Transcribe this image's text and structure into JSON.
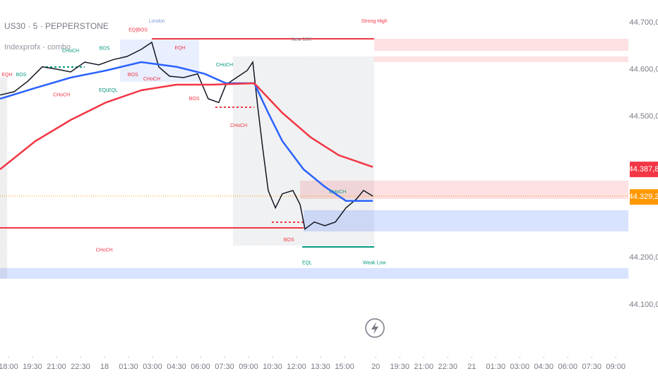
{
  "chart_data": {
    "type": "line",
    "title": "US30 · 5 · PEPPERSTONE",
    "subtitle": "Indexprofx - combo",
    "xlim": [
      -0.353,
      25.824
    ],
    "ylim": [
      44013,
      44748
    ],
    "xticks": [
      {
        "value": 0,
        "label": "18:00"
      },
      {
        "value": 1,
        "label": "19:30"
      },
      {
        "value": 2,
        "label": "21:00"
      },
      {
        "value": 3,
        "label": "22:30"
      },
      {
        "value": 4,
        "label": "18"
      },
      {
        "value": 5,
        "label": "01:30"
      },
      {
        "value": 6,
        "label": "03:00"
      },
      {
        "value": 7,
        "label": "04:30"
      },
      {
        "value": 8,
        "label": "06:00"
      },
      {
        "value": 9,
        "label": "07:30"
      },
      {
        "value": 10,
        "label": "09:00"
      },
      {
        "value": 11,
        "label": "10:30"
      },
      {
        "value": 12,
        "label": "12:00"
      },
      {
        "value": 13,
        "label": "13:30"
      },
      {
        "value": 14,
        "label": "15:00"
      },
      {
        "value": 15.3,
        "label": "20"
      },
      {
        "value": 16.3,
        "label": "19:30"
      },
      {
        "value": 17.3,
        "label": "21:00"
      },
      {
        "value": 18.3,
        "label": "22:30"
      },
      {
        "value": 19.3,
        "label": "21"
      },
      {
        "value": 20.3,
        "label": "01:30"
      },
      {
        "value": 21.3,
        "label": "03:00"
      },
      {
        "value": 22.3,
        "label": "04:30"
      },
      {
        "value": 23.3,
        "label": "06:00"
      },
      {
        "value": 24.3,
        "label": "07:30"
      },
      {
        "value": 25.3,
        "label": "09:00"
      }
    ],
    "yticks": [
      {
        "value": 44700,
        "label": "44.700,0"
      },
      {
        "value": 44600,
        "label": "44.600,0"
      },
      {
        "value": 44500,
        "label": "44.500,0"
      },
      {
        "value": 44200,
        "label": "44.200,0"
      },
      {
        "value": 44100,
        "label": "44.100,0"
      }
    ],
    "series": [
      {
        "name": "Price",
        "color": "#131722",
        "x": [
          -0.35,
          0.24,
          0.82,
          1.41,
          2,
          2.59,
          3.18,
          3.76,
          4.35,
          4.94,
          5.53,
          5.97,
          6.26,
          6.71,
          7.29,
          7.88,
          8.32,
          8.76,
          9.06,
          9.5,
          9.94,
          10.18,
          10.38,
          10.59,
          10.82,
          11.12,
          11.41,
          11.85,
          12.15,
          12.35,
          12.74,
          13.18,
          13.62,
          14.06,
          14.5,
          14.79,
          15.18
        ],
        "values": [
          44546,
          44553,
          44576,
          44606,
          44601,
          44595,
          44616,
          44610,
          44621,
          44628,
          44643,
          44658,
          44606,
          44586,
          44583,
          44591,
          44538,
          44530,
          44568,
          44583,
          44598,
          44616,
          44523,
          44433,
          44343,
          44306,
          44336,
          44343,
          44313,
          44261,
          44276,
          44268,
          44276,
          44306,
          44325,
          44343,
          44331
        ]
      },
      {
        "name": "EMA fast",
        "color": "#2962ff",
        "x": [
          -0.35,
          1.12,
          2.59,
          4.06,
          5.53,
          7,
          8.18,
          9.06,
          10.24,
          10.82,
          11.41,
          12.29,
          13.18,
          14.06,
          15.18
        ],
        "values": [
          44538,
          44561,
          44583,
          44598,
          44616,
          44606,
          44591,
          44571,
          44571,
          44508,
          44448,
          44388,
          44351,
          44321,
          44321
        ]
      },
      {
        "name": "EMA slow",
        "color": "#f23645",
        "x": [
          -0.35,
          1.12,
          2.59,
          4.06,
          5.53,
          7,
          8.47,
          10.24,
          11.41,
          12.59,
          13.76,
          15.18
        ],
        "values": [
          44388,
          44448,
          44493,
          44530,
          44556,
          44568,
          44568,
          44571,
          44508,
          44456,
          44418,
          44393
        ]
      }
    ],
    "price_labels": [
      {
        "value": 44387.8,
        "label": "44.387,8",
        "color": "#f23645"
      },
      {
        "value": 44329.2,
        "label": "44.329,2",
        "color": "#ff9800"
      }
    ],
    "annotations": [
      {
        "text": "London",
        "x": 6.18,
        "y": 44703,
        "color": "#7e9bd6"
      },
      {
        "text": "Strong High",
        "x": 15.24,
        "y": 44703,
        "color": "#f23645"
      },
      {
        "text": "New 16X",
        "x": 12.2,
        "y": 44664,
        "color": "#787b86"
      },
      {
        "text": "EQ|BOS",
        "x": 5.4,
        "y": 44684,
        "color": "#f23645"
      },
      {
        "text": "CHoCH",
        "x": 2.59,
        "y": 44640,
        "color": "#089981"
      },
      {
        "text": "BOS",
        "x": 4.0,
        "y": 44645,
        "color": "#089981"
      },
      {
        "text": "EQH",
        "x": -0.06,
        "y": 44589,
        "color": "#f23645"
      },
      {
        "text": "BOS",
        "x": 0.53,
        "y": 44589,
        "color": "#089981"
      },
      {
        "text": "CHoCH",
        "x": 2.21,
        "y": 44546,
        "color": "#f23645"
      },
      {
        "text": "EQL",
        "x": 3.97,
        "y": 44556,
        "color": "#089981"
      },
      {
        "text": "EQL",
        "x": 4.35,
        "y": 44556,
        "color": "#089981"
      },
      {
        "text": "BOS",
        "x": 5.18,
        "y": 44589,
        "color": "#f23645"
      },
      {
        "text": "CHoCH",
        "x": 5.97,
        "y": 44580,
        "color": "#f23645"
      },
      {
        "text": "EQH",
        "x": 7.15,
        "y": 44646,
        "color": "#f23645"
      },
      {
        "text": "BOS",
        "x": 7.74,
        "y": 44538,
        "color": "#f23645"
      },
      {
        "text": "CHoCH",
        "x": 9.0,
        "y": 44610,
        "color": "#089981"
      },
      {
        "text": "CHoCH",
        "x": 9.59,
        "y": 44481,
        "color": "#f23645"
      },
      {
        "text": "BOS",
        "x": 11.68,
        "y": 44238,
        "color": "#f23645"
      },
      {
        "text": "CHoCH",
        "x": 13.71,
        "y": 44340,
        "color": "#089981"
      },
      {
        "text": "CHoCH",
        "x": 3.99,
        "y": 44216,
        "color": "#f23645"
      },
      {
        "text": "EQL",
        "x": 12.44,
        "y": 44189,
        "color": "#089981"
      },
      {
        "text": "Weak Low",
        "x": 15.24,
        "y": 44189,
        "color": "#089981"
      }
    ]
  }
}
